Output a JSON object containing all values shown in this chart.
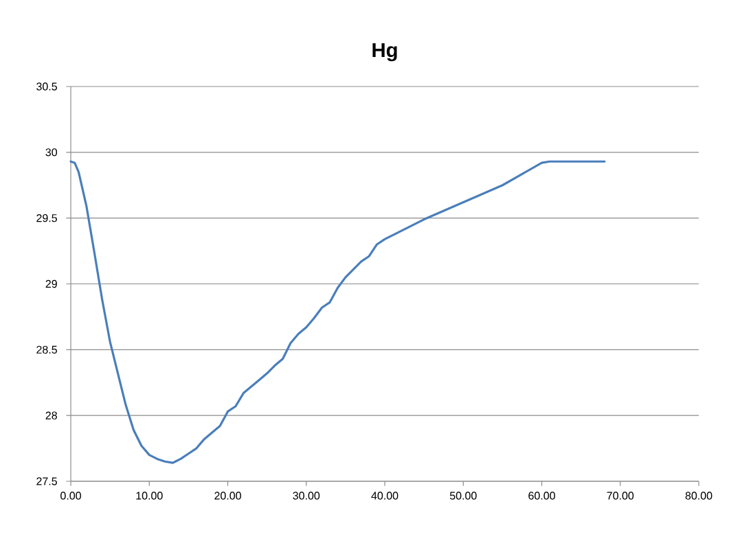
{
  "chart_data": {
    "type": "line",
    "title": "Hg",
    "x": [
      0,
      0.5,
      1,
      2,
      3,
      4,
      5,
      6,
      7,
      8,
      9,
      10,
      11,
      12,
      13,
      14,
      15,
      16,
      17,
      18,
      19,
      20,
      21,
      22,
      23,
      24,
      25,
      26,
      27,
      28,
      29,
      30,
      31,
      32,
      33,
      34,
      35,
      36,
      37,
      38,
      39,
      40,
      45,
      50,
      55,
      60,
      61,
      68
    ],
    "series": [
      {
        "color": "#4a7ebb",
        "values": [
          29.93,
          29.92,
          29.85,
          29.59,
          29.24,
          28.88,
          28.56,
          28.32,
          28.08,
          27.89,
          27.77,
          27.7,
          27.67,
          27.65,
          27.64,
          27.67,
          27.71,
          27.75,
          27.82,
          27.87,
          27.92,
          28.03,
          28.07,
          28.17,
          28.22,
          28.27,
          28.32,
          28.38,
          28.43,
          28.55,
          28.62,
          28.67,
          28.74,
          28.82,
          28.86,
          28.97,
          29.05,
          29.11,
          29.17,
          29.21,
          29.3,
          29.34,
          29.49,
          29.62,
          29.75,
          29.92,
          29.93,
          29.93
        ]
      }
    ],
    "xlim": [
      0,
      80
    ],
    "ylim": [
      27.5,
      30.5
    ],
    "xticks": [
      {
        "value": 0,
        "label": "0.00"
      },
      {
        "value": 10,
        "label": "10.00"
      },
      {
        "value": 20,
        "label": "20.00"
      },
      {
        "value": 30,
        "label": "30.00"
      },
      {
        "value": 40,
        "label": "40.00"
      },
      {
        "value": 50,
        "label": "50.00"
      },
      {
        "value": 60,
        "label": "60.00"
      },
      {
        "value": 70,
        "label": "70.00"
      },
      {
        "value": 80,
        "label": "80.00"
      }
    ],
    "yticks": [
      27.5,
      28,
      28.5,
      29,
      29.5,
      30,
      30.5
    ],
    "grid": "y",
    "marker": "none",
    "line_style": "solid"
  }
}
